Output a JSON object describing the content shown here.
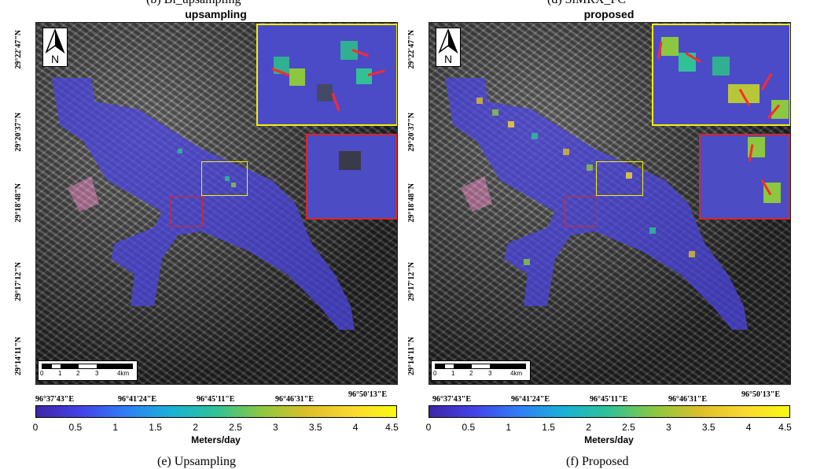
{
  "captions_top": {
    "left": "(b) Bi_upsampling",
    "right": "(d) SiMRX_FC"
  },
  "captions_bottom": {
    "left": "(e) Upsampling",
    "right": "(f) Proposed"
  },
  "panels": [
    {
      "title": "upsampling"
    },
    {
      "title": "proposed"
    }
  ],
  "north_label": "N",
  "latitude_labels": [
    "29°22'47\"N",
    "29°20'37\"N",
    "29°18'48\"N",
    "29°17'12\"N",
    "29°14'11\"N"
  ],
  "longitude_labels": [
    "96°37'43\"E",
    "96°41'24\"E",
    "96°45'11\"E",
    "96°46'31\"E",
    "96°50'13\"E"
  ],
  "scalebar": {
    "ticks": [
      "0",
      "1",
      "2",
      "3",
      "4km"
    ]
  },
  "colorbar": {
    "title": "Meters/day",
    "ticks": [
      "0",
      "0.5",
      "1",
      "1.5",
      "2",
      "2.5",
      "3",
      "3.5",
      "4",
      "4.5"
    ],
    "range": [
      0,
      4.5
    ],
    "colors": [
      "#3e26a8",
      "#4443e7",
      "#2f7ff6",
      "#1ab2d6",
      "#30c296",
      "#8bc840",
      "#dcbf2a",
      "#fbd830",
      "#f9fb0e"
    ]
  },
  "inset_colors": {
    "detail_1": "#f7f100",
    "detail_2": "#d8262c"
  }
}
